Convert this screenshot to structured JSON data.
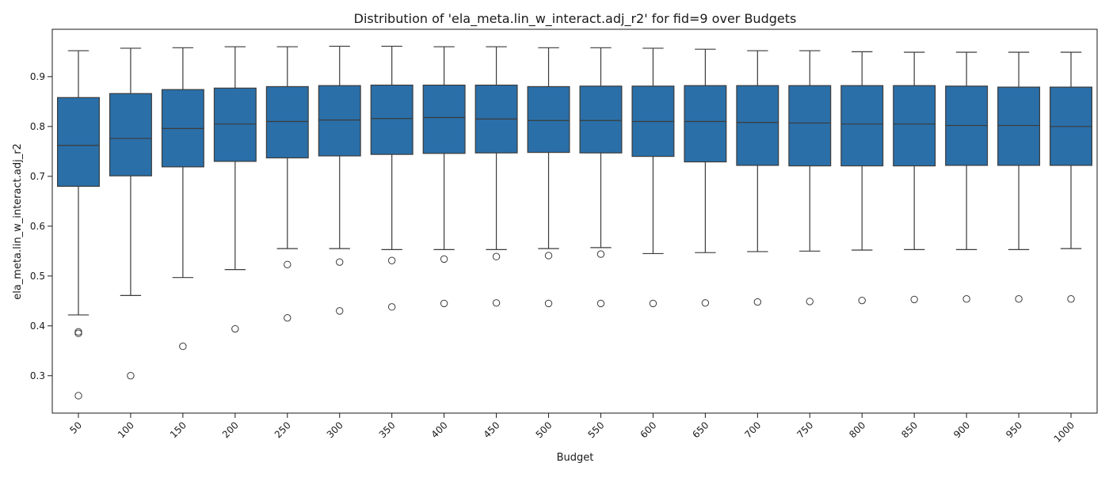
{
  "chart_data": {
    "type": "box",
    "title": "Distribution of 'ela_meta.lin_w_interact.adj_r2' for fid=9 over Budgets",
    "xlabel": "Budget",
    "ylabel": "ela_meta.lin_w_interact.adj_r2",
    "categories": [
      "50",
      "100",
      "150",
      "200",
      "250",
      "300",
      "350",
      "400",
      "450",
      "500",
      "550",
      "600",
      "650",
      "700",
      "750",
      "800",
      "850",
      "900",
      "950",
      "1000"
    ],
    "ylim": [
      0.225,
      0.995
    ],
    "yticks": [
      "0.3",
      "0.4",
      "0.5",
      "0.6",
      "0.7",
      "0.8",
      "0.9"
    ],
    "box_color": "#2a6fa8",
    "line_color": "#3b3b3b",
    "boxes": [
      {
        "whislo": 0.422,
        "q1": 0.68,
        "med": 0.762,
        "q3": 0.858,
        "whishi": 0.952,
        "fliers": [
          0.388,
          0.385,
          0.26
        ]
      },
      {
        "whislo": 0.461,
        "q1": 0.701,
        "med": 0.776,
        "q3": 0.866,
        "whishi": 0.957,
        "fliers": [
          0.3
        ]
      },
      {
        "whislo": 0.497,
        "q1": 0.719,
        "med": 0.796,
        "q3": 0.874,
        "whishi": 0.958,
        "fliers": [
          0.359
        ]
      },
      {
        "whislo": 0.513,
        "q1": 0.73,
        "med": 0.805,
        "q3": 0.877,
        "whishi": 0.96,
        "fliers": [
          0.394
        ]
      },
      {
        "whislo": 0.555,
        "q1": 0.737,
        "med": 0.81,
        "q3": 0.88,
        "whishi": 0.96,
        "fliers": [
          0.523,
          0.416
        ]
      },
      {
        "whislo": 0.555,
        "q1": 0.741,
        "med": 0.813,
        "q3": 0.882,
        "whishi": 0.961,
        "fliers": [
          0.528,
          0.43
        ]
      },
      {
        "whislo": 0.553,
        "q1": 0.744,
        "med": 0.816,
        "q3": 0.883,
        "whishi": 0.961,
        "fliers": [
          0.531,
          0.438
        ]
      },
      {
        "whislo": 0.553,
        "q1": 0.746,
        "med": 0.818,
        "q3": 0.883,
        "whishi": 0.96,
        "fliers": [
          0.534,
          0.445
        ]
      },
      {
        "whislo": 0.553,
        "q1": 0.747,
        "med": 0.815,
        "q3": 0.883,
        "whishi": 0.96,
        "fliers": [
          0.539,
          0.446
        ]
      },
      {
        "whislo": 0.555,
        "q1": 0.748,
        "med": 0.812,
        "q3": 0.88,
        "whishi": 0.958,
        "fliers": [
          0.541,
          0.445
        ]
      },
      {
        "whislo": 0.557,
        "q1": 0.747,
        "med": 0.812,
        "q3": 0.881,
        "whishi": 0.958,
        "fliers": [
          0.544,
          0.445
        ]
      },
      {
        "whislo": 0.545,
        "q1": 0.74,
        "med": 0.81,
        "q3": 0.881,
        "whishi": 0.957,
        "fliers": [
          0.445
        ]
      },
      {
        "whislo": 0.547,
        "q1": 0.729,
        "med": 0.81,
        "q3": 0.882,
        "whishi": 0.955,
        "fliers": [
          0.446
        ]
      },
      {
        "whislo": 0.549,
        "q1": 0.722,
        "med": 0.808,
        "q3": 0.882,
        "whishi": 0.952,
        "fliers": [
          0.448
        ]
      },
      {
        "whislo": 0.55,
        "q1": 0.721,
        "med": 0.807,
        "q3": 0.882,
        "whishi": 0.952,
        "fliers": [
          0.449
        ]
      },
      {
        "whislo": 0.552,
        "q1": 0.721,
        "med": 0.805,
        "q3": 0.882,
        "whishi": 0.95,
        "fliers": [
          0.451
        ]
      },
      {
        "whislo": 0.553,
        "q1": 0.721,
        "med": 0.805,
        "q3": 0.882,
        "whishi": 0.949,
        "fliers": [
          0.453
        ]
      },
      {
        "whislo": 0.553,
        "q1": 0.722,
        "med": 0.802,
        "q3": 0.881,
        "whishi": 0.949,
        "fliers": [
          0.454
        ]
      },
      {
        "whislo": 0.553,
        "q1": 0.722,
        "med": 0.802,
        "q3": 0.879,
        "whishi": 0.949,
        "fliers": [
          0.454
        ]
      },
      {
        "whislo": 0.555,
        "q1": 0.722,
        "med": 0.8,
        "q3": 0.879,
        "whishi": 0.949,
        "fliers": [
          0.454
        ]
      }
    ]
  }
}
